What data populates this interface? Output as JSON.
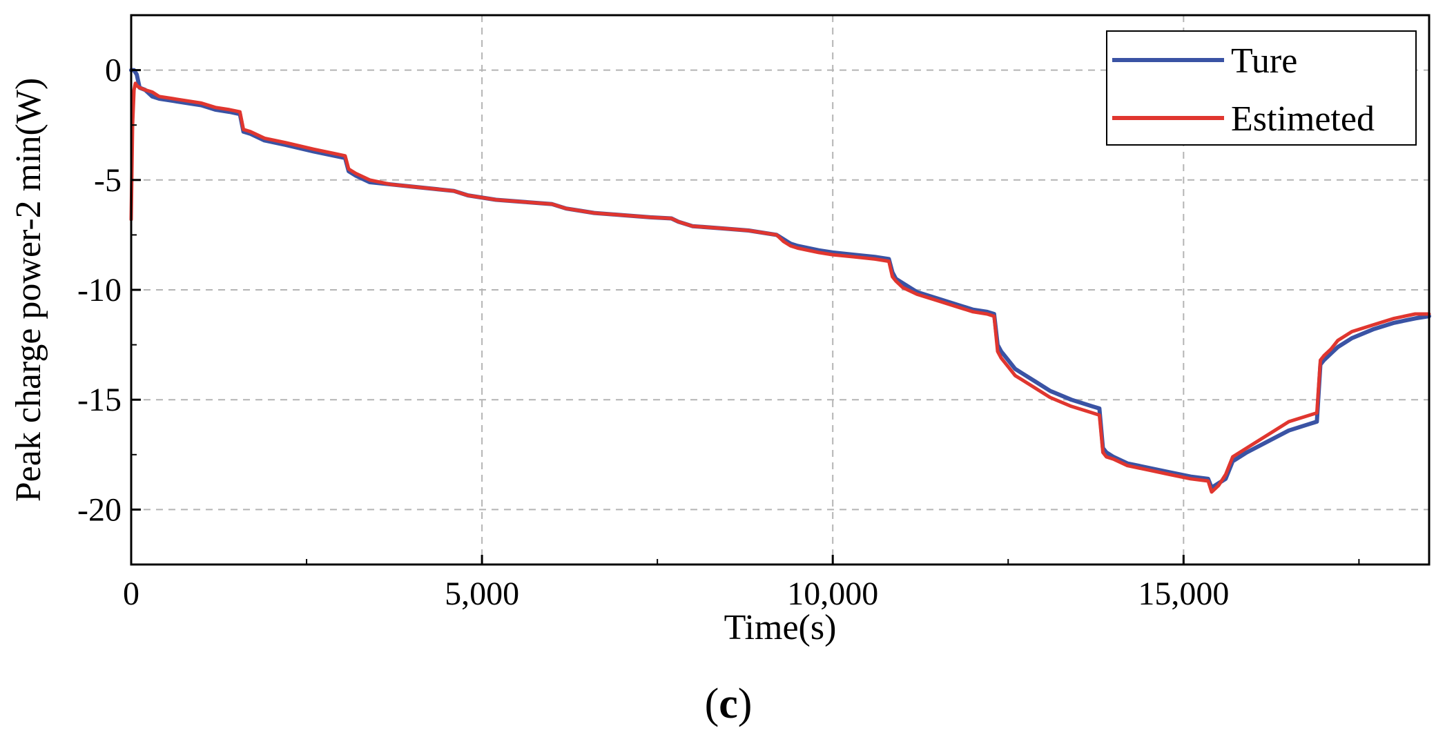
{
  "chart_data": {
    "type": "line",
    "title": "",
    "xlabel": "Time(s)",
    "ylabel": "Peak charge power-2 min(W)",
    "xlim": [
      0,
      18500
    ],
    "ylim": [
      -22.5,
      2.5
    ],
    "x_ticks": [
      0,
      5000,
      10000,
      15000
    ],
    "x_tick_labels": [
      "0",
      "5,000",
      "10,000",
      "15,000"
    ],
    "y_ticks": [
      0,
      -5,
      -10,
      -15,
      -20
    ],
    "y_tick_labels": [
      "0",
      "-5",
      "-10",
      "-15",
      "-20"
    ],
    "grid": true,
    "legend_position": "top-right",
    "series": [
      {
        "name": "Ture",
        "color": "#3a53a4",
        "x": [
          0,
          40,
          80,
          120,
          200,
          300,
          400,
          600,
          800,
          1000,
          1200,
          1400,
          1550,
          1600,
          1700,
          1900,
          2200,
          2600,
          2900,
          3050,
          3100,
          3200,
          3400,
          3700,
          4000,
          4300,
          4600,
          4800,
          5200,
          5600,
          6000,
          6200,
          6400,
          6600,
          7000,
          7400,
          7700,
          7800,
          8000,
          8400,
          8800,
          9200,
          9300,
          9400,
          9500,
          9800,
          10000,
          10300,
          10600,
          10800,
          10850,
          10900,
          11000,
          11200,
          11500,
          11800,
          12000,
          12200,
          12300,
          12350,
          12400,
          12500,
          12600,
          12700,
          12900,
          13100,
          13400,
          13700,
          13800,
          13850,
          13900,
          14000,
          14200,
          14500,
          14800,
          15100,
          15350,
          15400,
          15500,
          15600,
          15700,
          15900,
          16200,
          16500,
          16800,
          16900,
          16950,
          17000,
          17100,
          17200,
          17400,
          17700,
          18000,
          18300,
          18500
        ],
        "y": [
          0.0,
          0.0,
          -0.2,
          -0.8,
          -0.9,
          -1.2,
          -1.3,
          -1.4,
          -1.5,
          -1.6,
          -1.8,
          -1.9,
          -2.0,
          -2.8,
          -2.9,
          -3.2,
          -3.4,
          -3.7,
          -3.9,
          -4.0,
          -4.6,
          -4.8,
          -5.1,
          -5.2,
          -5.3,
          -5.4,
          -5.5,
          -5.7,
          -5.9,
          -6.0,
          -6.1,
          -6.3,
          -6.4,
          -6.5,
          -6.6,
          -6.7,
          -6.75,
          -6.9,
          -7.1,
          -7.2,
          -7.3,
          -7.5,
          -7.7,
          -7.9,
          -8.0,
          -8.2,
          -8.3,
          -8.4,
          -8.5,
          -8.6,
          -9.2,
          -9.5,
          -9.7,
          -10.1,
          -10.4,
          -10.7,
          -10.9,
          -11.0,
          -11.1,
          -12.5,
          -12.8,
          -13.2,
          -13.6,
          -13.8,
          -14.2,
          -14.6,
          -15.0,
          -15.3,
          -15.4,
          -17.2,
          -17.4,
          -17.6,
          -17.9,
          -18.1,
          -18.3,
          -18.5,
          -18.6,
          -19.0,
          -18.8,
          -18.6,
          -17.8,
          -17.4,
          -16.9,
          -16.4,
          -16.1,
          -16.0,
          -13.4,
          -13.2,
          -12.9,
          -12.6,
          -12.2,
          -11.8,
          -11.5,
          -11.3,
          -11.2
        ]
      },
      {
        "name": "Estimeted",
        "color": "#e0362f",
        "x": [
          0,
          20,
          40,
          60,
          80,
          120,
          200,
          300,
          400,
          600,
          800,
          1000,
          1200,
          1400,
          1550,
          1600,
          1700,
          1900,
          2200,
          2600,
          2900,
          3050,
          3100,
          3200,
          3400,
          3700,
          4000,
          4300,
          4600,
          4800,
          5200,
          5600,
          6000,
          6200,
          6400,
          6600,
          7000,
          7400,
          7700,
          7800,
          8000,
          8400,
          8800,
          9200,
          9300,
          9400,
          9500,
          9800,
          10000,
          10300,
          10600,
          10800,
          10850,
          10900,
          11000,
          11200,
          11500,
          11800,
          12000,
          12200,
          12300,
          12350,
          12400,
          12500,
          12600,
          12700,
          12900,
          13100,
          13400,
          13700,
          13800,
          13850,
          13900,
          14000,
          14200,
          14500,
          14800,
          15100,
          15350,
          15400,
          15500,
          15600,
          15700,
          15900,
          16200,
          16500,
          16800,
          16900,
          16950,
          17000,
          17100,
          17200,
          17400,
          17700,
          18000,
          18300,
          18500
        ],
        "y": [
          -6.8,
          -2.5,
          -0.9,
          -0.6,
          -0.7,
          -0.8,
          -0.9,
          -1.0,
          -1.2,
          -1.3,
          -1.4,
          -1.5,
          -1.7,
          -1.8,
          -1.9,
          -2.7,
          -2.8,
          -3.1,
          -3.3,
          -3.6,
          -3.8,
          -3.9,
          -4.5,
          -4.7,
          -5.0,
          -5.2,
          -5.3,
          -5.4,
          -5.5,
          -5.7,
          -5.9,
          -6.0,
          -6.1,
          -6.3,
          -6.4,
          -6.5,
          -6.6,
          -6.7,
          -6.75,
          -6.9,
          -7.1,
          -7.2,
          -7.3,
          -7.5,
          -7.8,
          -8.0,
          -8.1,
          -8.3,
          -8.4,
          -8.5,
          -8.6,
          -8.7,
          -9.4,
          -9.6,
          -9.9,
          -10.2,
          -10.5,
          -10.8,
          -11.0,
          -11.1,
          -11.2,
          -12.8,
          -13.1,
          -13.5,
          -13.9,
          -14.1,
          -14.5,
          -14.9,
          -15.3,
          -15.6,
          -15.7,
          -17.4,
          -17.6,
          -17.7,
          -18.0,
          -18.2,
          -18.4,
          -18.6,
          -18.7,
          -19.2,
          -18.9,
          -18.4,
          -17.6,
          -17.2,
          -16.6,
          -16.0,
          -15.7,
          -15.6,
          -13.2,
          -13.0,
          -12.7,
          -12.3,
          -11.9,
          -11.6,
          -11.3,
          -11.1,
          -11.1
        ]
      }
    ]
  },
  "caption": {
    "open": "(",
    "letter": "c",
    "close": ")"
  }
}
